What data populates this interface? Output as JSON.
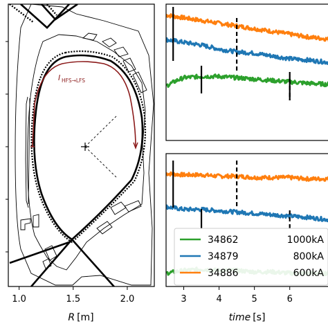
{
  "chart_data": [
    {
      "type": "diagram",
      "name": "poloidal-cross-section",
      "xlabel": "R [m]",
      "xlabel_italic": "R",
      "xlabel_unit": "[m]",
      "xlim": [
        0.9,
        2.25
      ],
      "xticks": [
        "1.0",
        "1.5",
        "2.0"
      ],
      "xtick_values": [
        1.0,
        1.5,
        2.0
      ],
      "annotation": "I",
      "annotation_sub": "HFS→LFS",
      "annotation_color": "#8b1a1a",
      "magnetic_axis_R": 1.63
    },
    {
      "type": "line",
      "name": "upper-time-traces",
      "xlim": [
        2.5,
        7.2
      ],
      "series": [
        {
          "name": "34886",
          "color": "#ff7f0e",
          "x": [
            2.5,
            3.0,
            3.5,
            4.0,
            4.5,
            5.0,
            5.5,
            6.0,
            6.5,
            7.2
          ],
          "y": [
            0.92,
            0.9,
            0.88,
            0.86,
            0.84,
            0.82,
            0.8,
            0.78,
            0.76,
            0.74
          ]
        },
        {
          "name": "34879",
          "color": "#1f77b4",
          "x": [
            2.5,
            3.0,
            3.5,
            4.0,
            4.5,
            5.0,
            5.5,
            6.0,
            6.5,
            7.2
          ],
          "y": [
            0.74,
            0.72,
            0.7,
            0.67,
            0.65,
            0.64,
            0.62,
            0.6,
            0.59,
            0.57
          ]
        },
        {
          "name": "34862",
          "color": "#2ca02c",
          "x": [
            2.5,
            2.8,
            3.0,
            3.5,
            4.0,
            4.5,
            5.0,
            5.5,
            6.0,
            6.5,
            7.2
          ],
          "y": [
            0.4,
            0.44,
            0.46,
            0.47,
            0.47,
            0.46,
            0.45,
            0.44,
            0.43,
            0.42,
            0.41
          ]
        }
      ],
      "markers_solid": [
        2.7,
        3.5,
        6.0
      ],
      "markers_dashed": [
        4.5,
        6.0
      ]
    },
    {
      "type": "line",
      "name": "lower-time-traces",
      "xlabel": "time [s]",
      "xlabel_italic": "time",
      "xlabel_unit": "[s]",
      "xlim": [
        2.5,
        7.2
      ],
      "xticks": [
        "3",
        "4",
        "5",
        "6"
      ],
      "xtick_values": [
        3,
        4,
        5,
        6
      ],
      "series": [
        {
          "name": "34886",
          "color": "#ff7f0e",
          "x": [
            2.5,
            3.0,
            3.5,
            4.0,
            4.5,
            5.0,
            5.5,
            6.0,
            6.5,
            7.2
          ],
          "y": [
            0.85,
            0.84,
            0.84,
            0.83,
            0.83,
            0.82,
            0.82,
            0.82,
            0.81,
            0.81
          ]
        },
        {
          "name": "34879",
          "color": "#1f77b4",
          "x": [
            2.5,
            3.0,
            3.5,
            4.0,
            4.5,
            5.0,
            5.5,
            6.0,
            6.5,
            7.2
          ],
          "y": [
            0.6,
            0.58,
            0.58,
            0.57,
            0.56,
            0.55,
            0.54,
            0.53,
            0.52,
            0.5
          ]
        },
        {
          "name": "34862",
          "color": "#2ca02c",
          "x": [
            2.5,
            3.0,
            3.5,
            4.0,
            4.5,
            5.0,
            5.5,
            6.0,
            6.5,
            7.2
          ],
          "y": [
            0.1,
            0.12,
            0.13,
            0.12,
            0.12,
            0.11,
            0.11,
            0.1,
            0.1,
            0.1
          ]
        }
      ],
      "markers_solid": [
        2.7,
        3.5
      ],
      "markers_dashed": [
        4.5,
        6.0
      ]
    }
  ],
  "legend": {
    "placement": "lower-right",
    "entries": [
      {
        "shot": "34862",
        "current": "1000kA",
        "color": "#2ca02c"
      },
      {
        "shot": "34879",
        "current": "800kA",
        "color": "#1f77b4"
      },
      {
        "shot": "34886",
        "current": "600kA",
        "color": "#ff7f0e"
      }
    ]
  }
}
